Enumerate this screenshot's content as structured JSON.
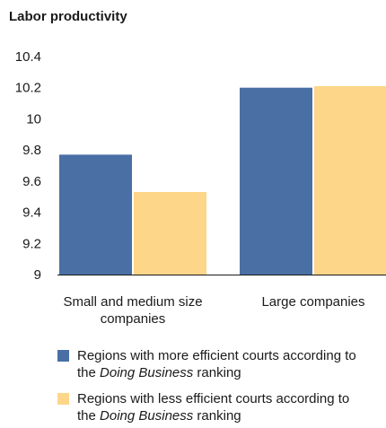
{
  "chart_data": {
    "type": "bar",
    "title": "Labor productivity",
    "categories": [
      [
        "Small and medium size",
        "companies"
      ],
      [
        "Large companies"
      ]
    ],
    "ylim": [
      9,
      10.4
    ],
    "yticks": [
      "9",
      "9.2",
      "9.4",
      "9.6",
      "9.8",
      "10",
      "10.2",
      "10.4"
    ],
    "ytick_values": [
      9,
      9.2,
      9.4,
      9.6,
      9.8,
      10,
      10.2,
      10.4
    ],
    "grid": false,
    "legend_position": "bottom",
    "series": [
      {
        "label_parts": [
          "Regions with more efficient courts according to",
          "the ",
          "Doing Business",
          " ranking"
        ],
        "color": "#4a6fa5",
        "values": [
          9.77,
          10.2
        ]
      },
      {
        "label_parts": [
          "Regions with less efficient courts according to",
          "the ",
          "Doing Business",
          " ranking"
        ],
        "color": "#fdd68a",
        "values": [
          9.53,
          10.21
        ]
      }
    ]
  }
}
